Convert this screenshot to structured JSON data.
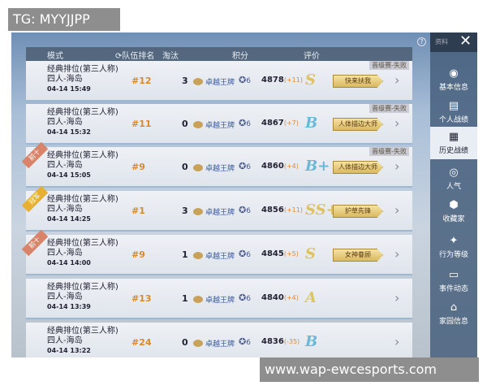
{
  "overlay": {
    "tg": "TG: MYYJJPP",
    "watermark": "www.wap-ewcesports.com"
  },
  "header": {
    "mode": "模式",
    "rank": "队伍排名",
    "kills": "淘汰",
    "score": "积分",
    "grade": "评价"
  },
  "sidebar": {
    "top_label": "资料",
    "close": "✕",
    "items": [
      {
        "label": "基本信息",
        "icon": "user-icon"
      },
      {
        "label": "个人战绩",
        "icon": "stats-doc-icon"
      },
      {
        "label": "历史战绩",
        "icon": "history-doc-icon",
        "active": true
      },
      {
        "label": "人气",
        "icon": "popularity-icon"
      },
      {
        "label": "收藏家",
        "icon": "collector-badge-icon"
      },
      {
        "label": "行为等级",
        "icon": "behavior-badge-icon"
      },
      {
        "label": "事件动态",
        "icon": "event-doc-icon"
      },
      {
        "label": "家园信息",
        "icon": "home-icon"
      }
    ]
  },
  "rows": [
    {
      "mode": "经典排位(第三人称)",
      "map": "四人-海岛",
      "time": "04-14 15:49",
      "rank": "#12",
      "kills": "3",
      "tier": "卓越王牌",
      "star": "6",
      "score": "4878",
      "delta": "(+11)",
      "grade": "S",
      "title": "快来扶我",
      "promo": "晋级赛-失败",
      "ribbon": ""
    },
    {
      "mode": "经典排位(第三人称)",
      "map": "四人-海岛",
      "time": "04-14 15:32",
      "rank": "#11",
      "kills": "0",
      "tier": "卓越王牌",
      "star": "6",
      "score": "4867",
      "delta": "(+7)",
      "grade": "B",
      "title": "人体描边大师",
      "promo": "晋级赛-失败",
      "ribbon": ""
    },
    {
      "mode": "经典排位(第三人称)",
      "map": "四人-海岛",
      "time": "04-14 15:05",
      "rank": "#9",
      "kills": "0",
      "tier": "卓越王牌",
      "star": "6",
      "score": "4860",
      "delta": "(+4)",
      "grade": "B+",
      "title": "人体描边大师",
      "promo": "晋级赛-失败",
      "ribbon": "前十"
    },
    {
      "mode": "经典排位(第三人称)",
      "map": "四人-海岛",
      "time": "04-14 14:25",
      "rank": "#1",
      "kills": "3",
      "tier": "卓越王牌",
      "star": "6",
      "score": "4856",
      "delta": "(+11)",
      "grade": "SS+",
      "title": "护草先锋",
      "promo": "",
      "ribbon": "冠军"
    },
    {
      "mode": "经典排位(第三人称)",
      "map": "四人-海岛",
      "time": "04-14 14:00",
      "rank": "#9",
      "kills": "1",
      "tier": "卓越王牌",
      "star": "6",
      "score": "4845",
      "delta": "(+5)",
      "grade": "S",
      "title": "女神眷顾",
      "promo": "",
      "ribbon": "前十"
    },
    {
      "mode": "经典排位(第三人称)",
      "map": "四人-海岛",
      "time": "04-14 13:39",
      "rank": "#13",
      "kills": "1",
      "tier": "卓越王牌",
      "star": "6",
      "score": "4840",
      "delta": "(+4)",
      "grade": "A",
      "title": "",
      "promo": "",
      "ribbon": ""
    },
    {
      "mode": "经典排位(第三人称)",
      "map": "四人-海岛",
      "time": "04-14 13:22",
      "rank": "#24",
      "kills": "0",
      "tier": "卓越王牌",
      "star": "6",
      "score": "4836",
      "delta": "(-35)",
      "grade": "B",
      "title": "",
      "promo": "",
      "ribbon": ""
    }
  ],
  "colors": {
    "grade_s": "#e0c060",
    "grade_b": "#6ab8d8",
    "grade_a": "#d8c860",
    "ribbon_top10": "#d9846a",
    "ribbon_champion": "#e8b030",
    "rank": "#d98a2a"
  }
}
